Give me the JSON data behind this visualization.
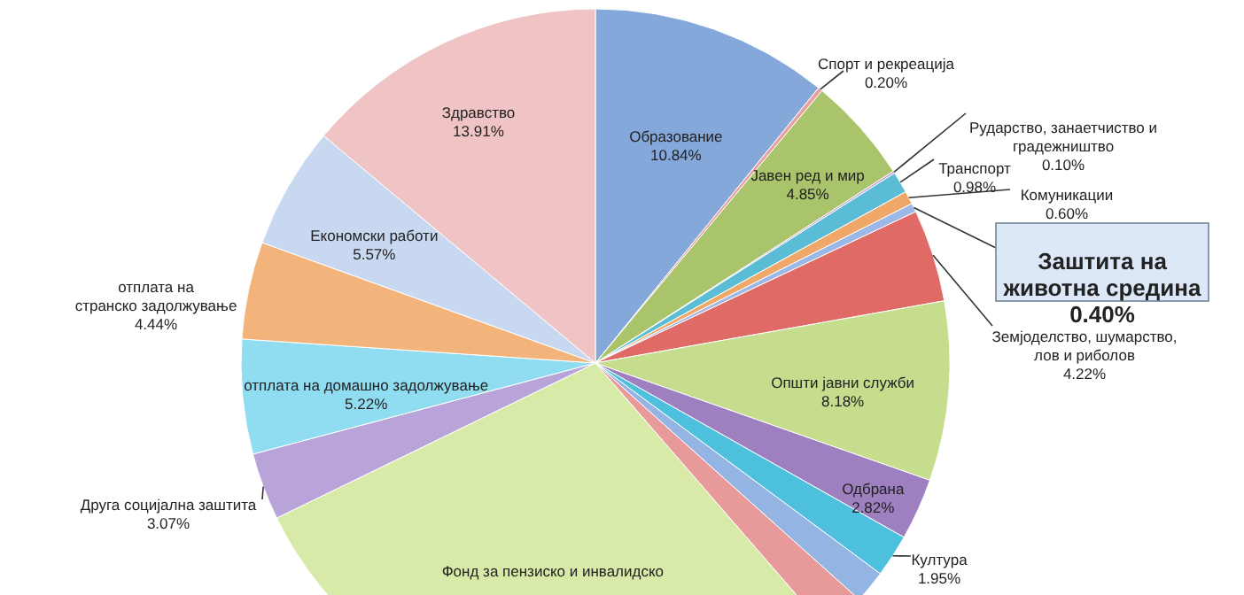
{
  "chart_data": {
    "type": "pie",
    "categories": [
      "Образование",
      "Спорт и рекреација",
      "Јавен ред и мир",
      "Рударство, занаетчиство и\nградежништво",
      "Транспорт",
      "Комуникации",
      "Заштита на\nживотна средина",
      "Земјоделство, шумарство,\nлов и риболов",
      "Општи јавни служби",
      "Одбрана",
      "Култура",
      null,
      null,
      "Фонд за пензиско и инвалидско",
      "Друга социјална заштита",
      "отплата на домашно задолжување",
      "отплата на\nстранско задолжување",
      "Економски работи",
      "Здравство"
    ],
    "values": [
      10.84,
      0.2,
      4.85,
      0.1,
      0.98,
      0.6,
      0.4,
      4.22,
      8.18,
      2.82,
      1.95,
      1.5,
      2.0,
      29.15,
      3.07,
      5.22,
      4.44,
      5.57,
      13.91
    ],
    "value_labels": [
      "10.84%",
      "0.20%",
      "4.85%",
      "0.10%",
      "0.98%",
      "0.60%",
      "0.40%",
      "4.22%",
      "8.18%",
      "2.82%",
      "1.95%",
      null,
      null,
      null,
      "3.07%",
      "5.22%",
      "4.44%",
      "5.57%",
      "13.91%"
    ],
    "colors": [
      "#84a8da",
      "#e8a0a0",
      "#a9c46a",
      "#c3a3d6",
      "#5bbcd6",
      "#f0a868",
      "#9cb8e8",
      "#e06a66",
      "#c6dd8e",
      "#9e80c0",
      "#4cc0dc",
      "#94b4e4",
      "#e89a9a",
      "#d8eaa8",
      "#b8a4d8",
      "#90dcf0",
      "#f2b47a",
      "#c8d8f0",
      "#f0c4c4"
    ]
  }
}
